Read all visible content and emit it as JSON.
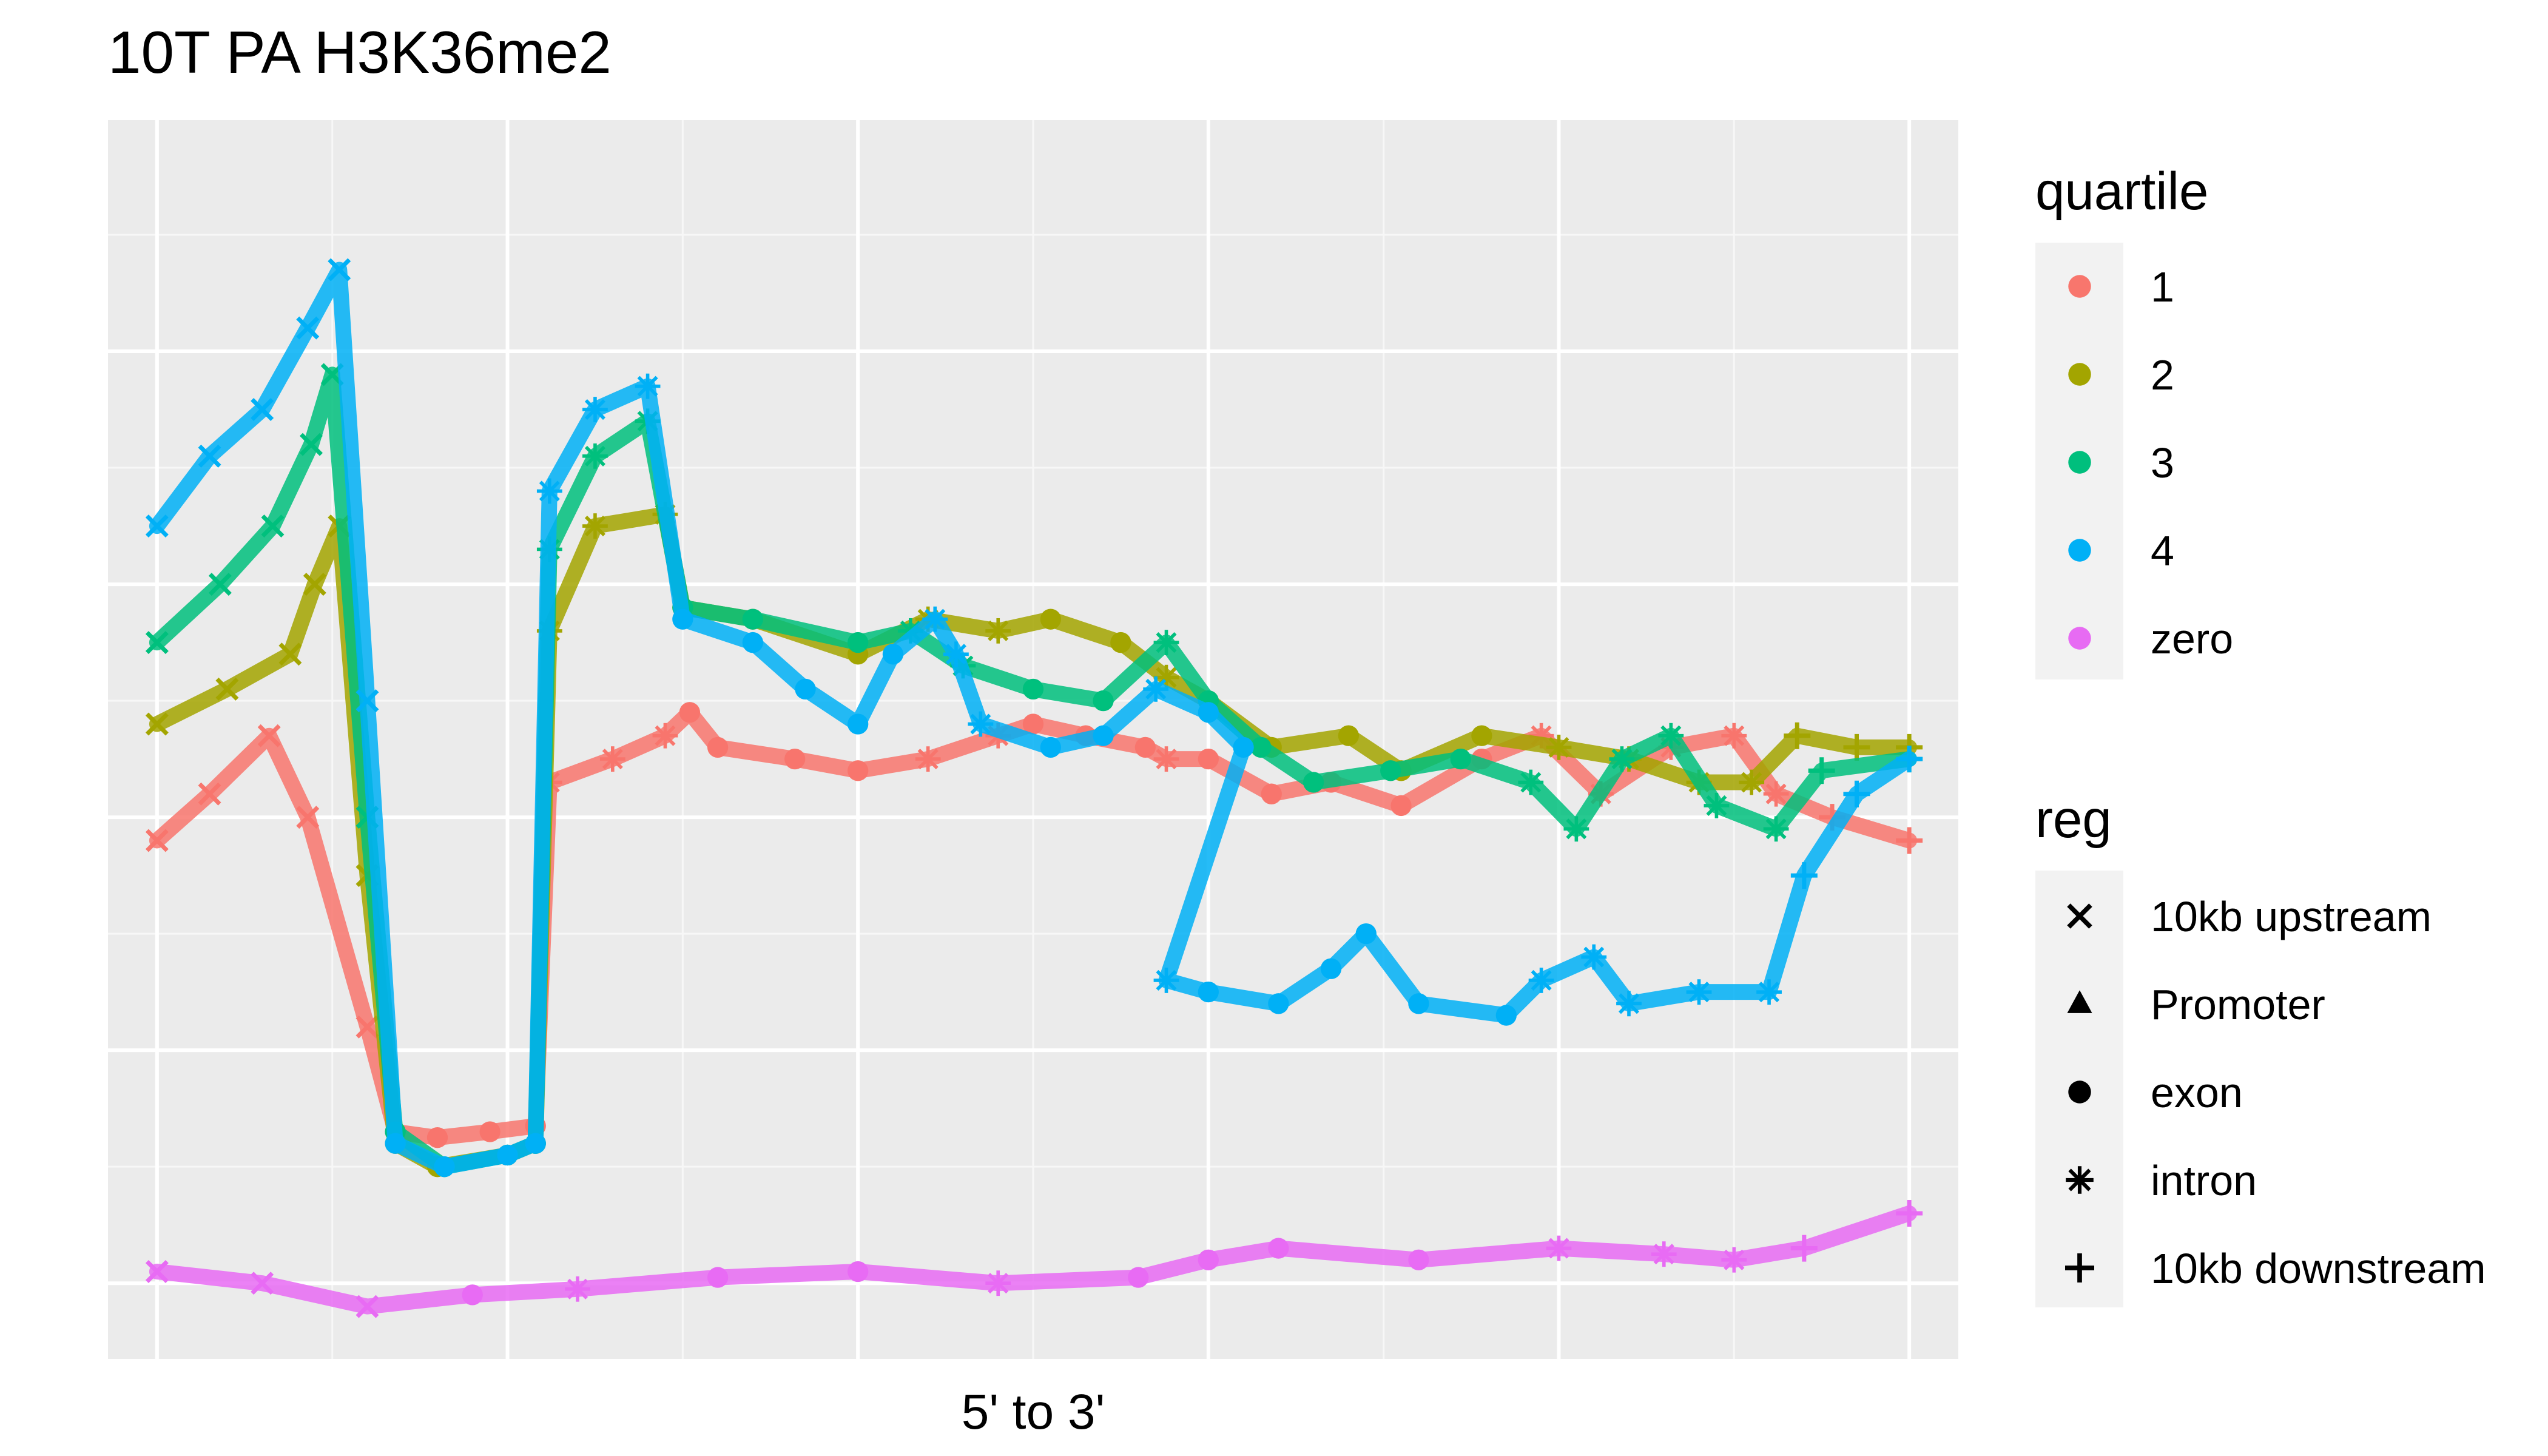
{
  "chart_data": {
    "type": "scatter",
    "title": "10T PA H3K36me2",
    "xlabel": "5' to 3'",
    "ylabel": "",
    "xlim": [
      0,
      500
    ],
    "ylim": [
      0,
      1
    ],
    "grid": true,
    "legend_placement": "right",
    "legends": [
      {
        "title": "quartile",
        "entries": [
          {
            "label": "1",
            "color": "#F8766D"
          },
          {
            "label": "2",
            "color": "#A3A500"
          },
          {
            "label": "3",
            "color": "#00BF7D"
          },
          {
            "label": "4",
            "color": "#00B0F6"
          },
          {
            "label": "zero",
            "color": "#E76BF3"
          }
        ]
      },
      {
        "title": "reg",
        "entries": [
          {
            "label": "10kb upstream",
            "shape": "cross"
          },
          {
            "label": "Promoter",
            "shape": "triangle"
          },
          {
            "label": "exon",
            "shape": "circle"
          },
          {
            "label": "intron",
            "shape": "asterisk"
          },
          {
            "label": "10kb downstream",
            "shape": "plus"
          }
        ]
      }
    ],
    "regions": [
      {
        "name": "10kb upstream",
        "shape": "cross",
        "x": [
          0,
          65
        ]
      },
      {
        "name": "exon",
        "shape": "circle",
        "x": [
          65,
          110
        ]
      },
      {
        "name": "intron",
        "shape": "asterisk",
        "x": [
          110,
          145
        ]
      },
      {
        "name": "exon",
        "shape": "circle",
        "x": [
          145,
          212
        ]
      },
      {
        "name": "intron",
        "shape": "asterisk",
        "x": [
          212,
          240
        ]
      },
      {
        "name": "exon",
        "shape": "circle",
        "x": [
          240,
          283
        ]
      },
      {
        "name": "intron",
        "shape": "asterisk",
        "x": [
          283,
          288
        ]
      },
      {
        "name": "exon",
        "shape": "circle",
        "x": [
          288,
          385
        ]
      },
      {
        "name": "intron",
        "shape": "asterisk",
        "x": [
          385,
          462
        ]
      },
      {
        "name": "10kb downstream",
        "shape": "plus",
        "x": [
          462,
          500
        ]
      }
    ],
    "series": [
      {
        "name": "1",
        "color": "#F8766D",
        "points": [
          [
            0,
            0.38
          ],
          [
            15,
            0.42
          ],
          [
            32,
            0.47
          ],
          [
            43,
            0.4
          ],
          [
            60,
            0.22
          ],
          [
            68,
            0.13
          ],
          [
            80,
            0.125
          ],
          [
            95,
            0.13
          ],
          [
            108,
            0.135
          ],
          [
            112,
            0.43
          ],
          [
            130,
            0.45
          ],
          [
            145,
            0.47
          ],
          [
            152,
            0.49
          ],
          [
            160,
            0.46
          ],
          [
            182,
            0.45
          ],
          [
            200,
            0.44
          ],
          [
            220,
            0.45
          ],
          [
            240,
            0.47
          ],
          [
            250,
            0.48
          ],
          [
            265,
            0.47
          ],
          [
            282,
            0.46
          ],
          [
            288,
            0.45
          ],
          [
            300,
            0.45
          ],
          [
            318,
            0.42
          ],
          [
            335,
            0.43
          ],
          [
            355,
            0.41
          ],
          [
            378,
            0.45
          ],
          [
            395,
            0.47
          ],
          [
            412,
            0.42
          ],
          [
            432,
            0.46
          ],
          [
            450,
            0.47
          ],
          [
            462,
            0.42
          ],
          [
            478,
            0.4
          ],
          [
            500,
            0.38
          ]
        ]
      },
      {
        "name": "2",
        "color": "#A3A500",
        "points": [
          [
            0,
            0.48
          ],
          [
            20,
            0.51
          ],
          [
            38,
            0.54
          ],
          [
            45,
            0.6
          ],
          [
            52,
            0.65
          ],
          [
            60,
            0.35
          ],
          [
            68,
            0.12
          ],
          [
            80,
            0.1
          ],
          [
            100,
            0.11
          ],
          [
            108,
            0.12
          ],
          [
            112,
            0.56
          ],
          [
            125,
            0.65
          ],
          [
            145,
            0.66
          ],
          [
            150,
            0.58
          ],
          [
            170,
            0.57
          ],
          [
            200,
            0.54
          ],
          [
            220,
            0.57
          ],
          [
            240,
            0.56
          ],
          [
            255,
            0.57
          ],
          [
            275,
            0.55
          ],
          [
            288,
            0.52
          ],
          [
            300,
            0.5
          ],
          [
            318,
            0.46
          ],
          [
            340,
            0.47
          ],
          [
            355,
            0.44
          ],
          [
            378,
            0.47
          ],
          [
            400,
            0.46
          ],
          [
            420,
            0.45
          ],
          [
            440,
            0.43
          ],
          [
            455,
            0.43
          ],
          [
            468,
            0.47
          ],
          [
            485,
            0.46
          ],
          [
            500,
            0.46
          ]
        ]
      },
      {
        "name": "3",
        "color": "#00BF7D",
        "points": [
          [
            0,
            0.55
          ],
          [
            18,
            0.6
          ],
          [
            33,
            0.65
          ],
          [
            44,
            0.72
          ],
          [
            50,
            0.78
          ],
          [
            60,
            0.4
          ],
          [
            68,
            0.13
          ],
          [
            82,
            0.1
          ],
          [
            100,
            0.11
          ],
          [
            108,
            0.12
          ],
          [
            112,
            0.63
          ],
          [
            125,
            0.71
          ],
          [
            140,
            0.74
          ],
          [
            150,
            0.58
          ],
          [
            170,
            0.57
          ],
          [
            200,
            0.55
          ],
          [
            215,
            0.56
          ],
          [
            230,
            0.53
          ],
          [
            250,
            0.51
          ],
          [
            270,
            0.5
          ],
          [
            288,
            0.55
          ],
          [
            300,
            0.5
          ],
          [
            315,
            0.46
          ],
          [
            330,
            0.43
          ],
          [
            352,
            0.44
          ],
          [
            372,
            0.45
          ],
          [
            392,
            0.43
          ],
          [
            405,
            0.39
          ],
          [
            418,
            0.45
          ],
          [
            432,
            0.47
          ],
          [
            445,
            0.41
          ],
          [
            462,
            0.39
          ],
          [
            475,
            0.44
          ],
          [
            500,
            0.45
          ]
        ]
      },
      {
        "name": "4",
        "color": "#00B0F6",
        "points": [
          [
            0,
            0.65
          ],
          [
            15,
            0.71
          ],
          [
            30,
            0.75
          ],
          [
            43,
            0.82
          ],
          [
            52,
            0.87
          ],
          [
            60,
            0.5
          ],
          [
            68,
            0.12
          ],
          [
            82,
            0.1
          ],
          [
            100,
            0.11
          ],
          [
            108,
            0.12
          ],
          [
            112,
            0.68
          ],
          [
            125,
            0.75
          ],
          [
            140,
            0.77
          ],
          [
            150,
            0.57
          ],
          [
            170,
            0.55
          ],
          [
            185,
            0.51
          ],
          [
            200,
            0.48
          ],
          [
            210,
            0.54
          ],
          [
            222,
            0.57
          ],
          [
            228,
            0.54
          ],
          [
            235,
            0.48
          ],
          [
            255,
            0.46
          ],
          [
            270,
            0.47
          ],
          [
            285,
            0.51
          ],
          [
            300,
            0.49
          ],
          [
            310,
            0.46
          ],
          [
            288,
            0.26
          ],
          [
            300,
            0.25
          ],
          [
            320,
            0.24
          ],
          [
            335,
            0.27
          ],
          [
            345,
            0.3
          ],
          [
            360,
            0.24
          ],
          [
            385,
            0.23
          ],
          [
            395,
            0.26
          ],
          [
            410,
            0.28
          ],
          [
            420,
            0.24
          ],
          [
            440,
            0.25
          ],
          [
            460,
            0.25
          ],
          [
            470,
            0.35
          ],
          [
            485,
            0.42
          ],
          [
            500,
            0.45
          ]
        ]
      },
      {
        "name": "zero",
        "color": "#E76BF3",
        "points": [
          [
            0,
            0.01
          ],
          [
            30,
            0.0
          ],
          [
            60,
            -0.02
          ],
          [
            90,
            -0.01
          ],
          [
            120,
            -0.005
          ],
          [
            160,
            0.005
          ],
          [
            200,
            0.01
          ],
          [
            240,
            0.0
          ],
          [
            280,
            0.005
          ],
          [
            300,
            0.02
          ],
          [
            320,
            0.03
          ],
          [
            360,
            0.02
          ],
          [
            400,
            0.03
          ],
          [
            430,
            0.025
          ],
          [
            450,
            0.02
          ],
          [
            470,
            0.03
          ],
          [
            500,
            0.06
          ]
        ]
      }
    ]
  }
}
